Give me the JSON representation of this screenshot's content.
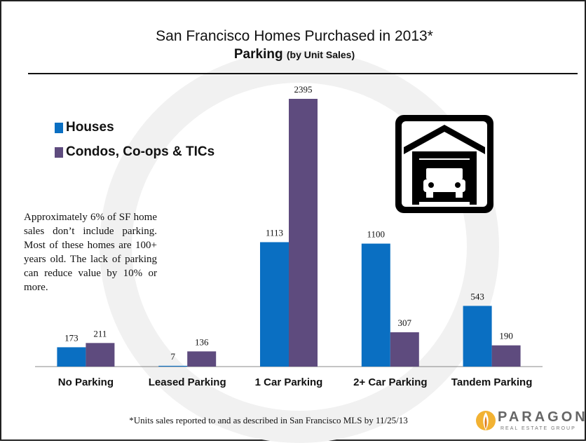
{
  "title": "San Francisco Homes Purchased in 2013*",
  "subtitle": "Parking",
  "subtitle_note": "(by Unit Sales)",
  "note": "Approximately 6% of SF home sales don’t include parking. Most of these homes are 100+ years old. The lack of parking can reduce value by 10% or more.",
  "footnote": "*Units sales reported to and as described in San Francisco MLS by 11/25/13",
  "logo": {
    "name": "PARAGON",
    "tagline": "REAL ESTATE GROUP"
  },
  "icons": {
    "garage": "garage-car-icon",
    "logo": "paragon-flame-icon"
  },
  "colors": {
    "houses": "#0a6fc2",
    "condos": "#5e4b7e",
    "text": "#111111"
  },
  "chart_data": {
    "type": "bar",
    "categories": [
      "No Parking",
      "Leased Parking",
      "1 Car Parking",
      "2+ Car Parking",
      "Tandem Parking"
    ],
    "series": [
      {
        "name": "Houses",
        "values": [
          173,
          7,
          1113,
          1100,
          543
        ]
      },
      {
        "name": "Condos, Co-ops & TICs",
        "values": [
          211,
          136,
          2395,
          307,
          190
        ]
      }
    ],
    "ylim": [
      0,
      2500
    ],
    "grid": false,
    "legend": "top-left",
    "xlabel": "",
    "ylabel": ""
  }
}
